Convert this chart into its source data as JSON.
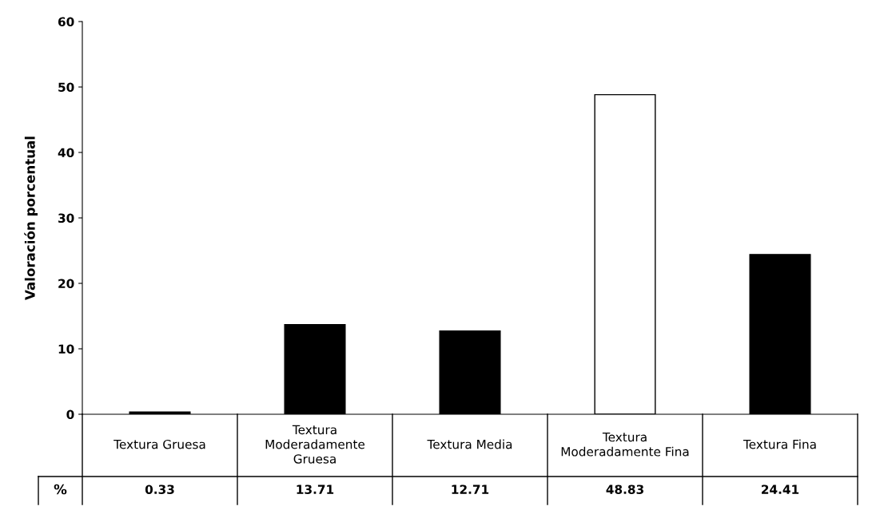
{
  "chart_data": {
    "type": "bar",
    "ylabel": "Valoración porcentual",
    "categories": [
      "Textura Gruesa",
      "Textura Moderadamente Gruesa",
      "Textura Media",
      "Textura Moderadamente Fina",
      "Textura Fina"
    ],
    "annotations": [
      "%"
    ],
    "series": [
      {
        "colors": [
          "#000000",
          "#000000",
          "#000000",
          "#ffffff",
          "#000000"
        ],
        "values": [
          0.33,
          13.71,
          12.71,
          48.83,
          24.41
        ]
      }
    ],
    "ylim": [
      0,
      60
    ],
    "yticks": [
      0,
      10,
      20,
      30,
      40,
      50,
      60
    ],
    "grid": false,
    "legend": false,
    "data_labels": true
  }
}
